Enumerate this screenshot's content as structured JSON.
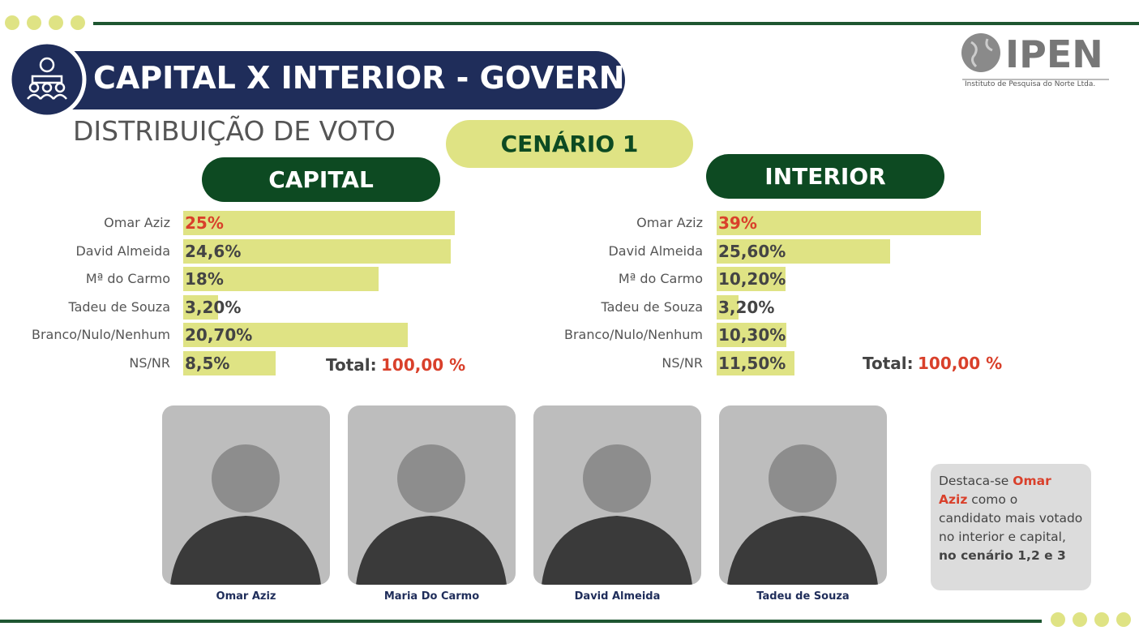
{
  "header": {
    "title": "CAPITAL X INTERIOR - GOVERNO",
    "subtitle": "DISTRIBUIÇÃO DE VOTO",
    "scenario": "CENÁRIO 1",
    "logo": "IPEN",
    "logo_caption": "Instituto de Pesquisa do Norte Ltda."
  },
  "chart_data": [
    {
      "type": "bar",
      "orientation": "horizontal",
      "title": "CAPITAL",
      "color": "#dfe384",
      "highlight_color": "#d9402b",
      "categories": [
        "Omar Aziz",
        "David Almeida",
        "Mª do Carmo",
        "Tadeu de Souza",
        "Branco/Nulo/Nenhum",
        "NS/NR"
      ],
      "values": [
        25,
        24.6,
        18,
        3.2,
        20.7,
        8.5
      ],
      "value_labels": [
        "25%",
        "24,6%",
        "18%",
        "3,20%",
        "20,70%",
        "8,5%"
      ],
      "total": {
        "label": "Total:",
        "value": "100,00 %"
      }
    },
    {
      "type": "bar",
      "orientation": "horizontal",
      "title": "INTERIOR",
      "color": "#dfe384",
      "highlight_color": "#d9402b",
      "categories": [
        "Omar Aziz",
        "David Almeida",
        "Mª do Carmo",
        "Tadeu de Souza",
        "Branco/Nulo/Nenhum",
        "NS/NR"
      ],
      "values": [
        39,
        25.6,
        10.2,
        3.2,
        10.3,
        11.5
      ],
      "value_labels": [
        "39%",
        "25,60%",
        "10,20%",
        "3,20%",
        "10,30%",
        "11,50%"
      ],
      "total": {
        "label": "Total:",
        "value": "100,00 %"
      }
    }
  ],
  "photos": [
    "Omar Aziz",
    "Maria Do Carmo",
    "David Almeida",
    "Tadeu de Souza"
  ],
  "note": [
    "Destaca-se ",
    "Omar Aziz",
    " como o candidato mais votado no interior e capital, ",
    "no cenário 1,2 e 3"
  ]
}
